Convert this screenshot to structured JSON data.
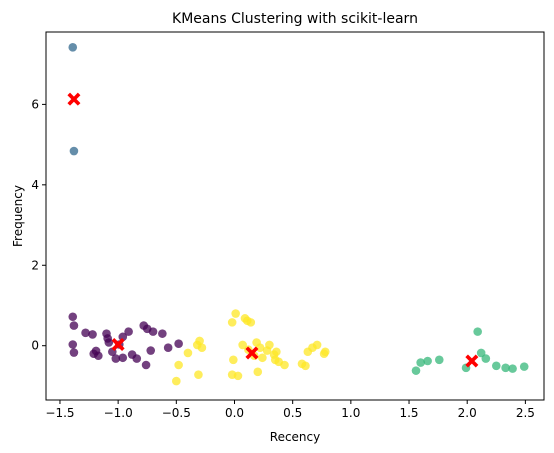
{
  "chart_data": {
    "type": "scatter",
    "title": "KMeans Clustering with scikit-learn",
    "xlabel": "Recency",
    "ylabel": "Frequency",
    "xlim": [
      -1.62,
      2.66
    ],
    "ylim": [
      -1.35,
      7.8
    ],
    "xticks": [
      -1.5,
      -1.0,
      -0.5,
      0.0,
      0.5,
      1.0,
      1.5,
      2.0,
      2.5
    ],
    "xtick_labels": [
      "−1.5",
      "−1.0",
      "−0.5",
      "0.0",
      "0.5",
      "1.0",
      "1.5",
      "2.0",
      "2.5"
    ],
    "yticks": [
      0,
      2,
      4,
      6
    ],
    "ytick_labels": [
      "0",
      "2",
      "4",
      "6"
    ],
    "grid": false,
    "legend": "none",
    "point_alpha": 0.75,
    "clusters": [
      {
        "color": "#440154",
        "points": [
          [
            -1.39,
            0.72
          ],
          [
            -1.38,
            0.5
          ],
          [
            -1.39,
            0.03
          ],
          [
            -1.38,
            -0.17
          ],
          [
            -1.28,
            0.32
          ],
          [
            -1.22,
            0.28
          ],
          [
            -1.21,
            -0.2
          ],
          [
            -1.19,
            -0.13
          ],
          [
            -1.17,
            -0.25
          ],
          [
            -1.1,
            0.3
          ],
          [
            -1.09,
            0.18
          ],
          [
            -1.08,
            0.08
          ],
          [
            -1.05,
            -0.15
          ],
          [
            -1.02,
            -0.32
          ],
          [
            -0.99,
            0.03
          ],
          [
            -0.96,
            -0.3
          ],
          [
            -0.91,
            0.35
          ],
          [
            -0.88,
            -0.22
          ],
          [
            -0.84,
            -0.32
          ],
          [
            -0.78,
            0.5
          ],
          [
            -0.75,
            0.42
          ],
          [
            -0.7,
            0.35
          ],
          [
            -0.62,
            0.3
          ],
          [
            -0.57,
            -0.05
          ],
          [
            -0.72,
            -0.12
          ],
          [
            -0.76,
            -0.48
          ],
          [
            -0.48,
            0.05
          ],
          [
            -0.96,
            0.22
          ]
        ]
      },
      {
        "color": "#31688e",
        "points": [
          [
            -1.39,
            7.42
          ],
          [
            -1.38,
            4.84
          ]
        ]
      },
      {
        "color": "#35b779",
        "points": [
          [
            1.56,
            -0.62
          ],
          [
            1.6,
            -0.42
          ],
          [
            1.66,
            -0.38
          ],
          [
            1.76,
            -0.35
          ],
          [
            1.99,
            -0.55
          ],
          [
            2.09,
            0.35
          ],
          [
            2.12,
            -0.18
          ],
          [
            2.16,
            -0.32
          ],
          [
            2.25,
            -0.5
          ],
          [
            2.33,
            -0.55
          ],
          [
            2.39,
            -0.57
          ],
          [
            2.49,
            -0.52
          ]
        ]
      },
      {
        "color": "#fde725",
        "points": [
          [
            -0.5,
            -0.88
          ],
          [
            -0.48,
            -0.48
          ],
          [
            -0.4,
            -0.18
          ],
          [
            -0.32,
            0.02
          ],
          [
            -0.3,
            0.12
          ],
          [
            -0.28,
            -0.05
          ],
          [
            -0.31,
            -0.72
          ],
          [
            -0.02,
            0.58
          ],
          [
            -0.01,
            -0.35
          ],
          [
            -0.02,
            -0.72
          ],
          [
            0.01,
            0.8
          ],
          [
            0.03,
            -0.75
          ],
          [
            0.07,
            0.02
          ],
          [
            0.09,
            0.68
          ],
          [
            0.11,
            0.62
          ],
          [
            0.14,
            0.58
          ],
          [
            0.17,
            -0.25
          ],
          [
            0.19,
            0.08
          ],
          [
            0.22,
            -0.05
          ],
          [
            0.2,
            -0.65
          ],
          [
            0.24,
            -0.3
          ],
          [
            0.28,
            -0.12
          ],
          [
            0.3,
            0.02
          ],
          [
            0.34,
            -0.22
          ],
          [
            0.36,
            -0.15
          ],
          [
            0.38,
            -0.4
          ],
          [
            0.43,
            -0.48
          ],
          [
            0.58,
            -0.45
          ],
          [
            0.61,
            -0.5
          ],
          [
            0.63,
            -0.15
          ],
          [
            0.67,
            -0.05
          ],
          [
            0.71,
            0.02
          ],
          [
            0.77,
            -0.2
          ],
          [
            0.78,
            -0.15
          ],
          [
            0.12,
            -0.1
          ],
          [
            0.35,
            -0.35
          ]
        ]
      }
    ],
    "centroids": {
      "color": "#ff0000",
      "marker": "X",
      "points": [
        [
          -1.38,
          6.13
        ],
        [
          -1.0,
          0.03
        ],
        [
          0.15,
          -0.18
        ],
        [
          2.04,
          -0.38
        ]
      ]
    }
  }
}
